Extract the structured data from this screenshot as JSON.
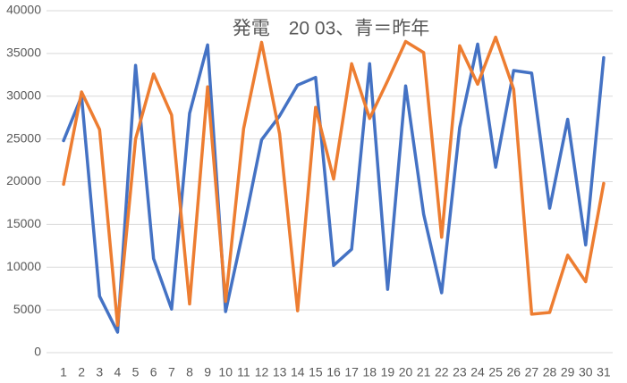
{
  "chart_data": {
    "type": "line",
    "title": "発電　20 03、青＝昨年",
    "categories": [
      "1",
      "2",
      "3",
      "4",
      "5",
      "6",
      "7",
      "8",
      "9",
      "10",
      "11",
      "12",
      "13",
      "14",
      "15",
      "16",
      "17",
      "18",
      "19",
      "20",
      "21",
      "22",
      "23",
      "24",
      "25",
      "26",
      "27",
      "28",
      "29",
      "30",
      "31"
    ],
    "series": [
      {
        "color": "#4472c4",
        "values": [
          24800,
          30000,
          6600,
          2400,
          33600,
          11000,
          5100,
          28000,
          36000,
          4800,
          14500,
          24900,
          27700,
          31300,
          32200,
          10200,
          12100,
          33800,
          7400,
          31200,
          16200,
          7000,
          26300,
          36100,
          21700,
          33000,
          32700,
          16900,
          27300,
          12600,
          34500
        ]
      },
      {
        "color": "#ed7d31",
        "values": [
          19700,
          30500,
          26100,
          3200,
          25000,
          32600,
          27800,
          5700,
          31100,
          6000,
          26200,
          36300,
          25600,
          4900,
          28700,
          20300,
          33800,
          27400,
          31800,
          36400,
          35100,
          13500,
          35900,
          31400,
          36900,
          30800,
          4500,
          4700,
          11400,
          8300,
          19800
        ]
      }
    ],
    "ylim": [
      0,
      40000
    ],
    "yticks": [
      0,
      5000,
      10000,
      15000,
      20000,
      25000,
      30000,
      35000,
      40000
    ],
    "grid": true
  }
}
